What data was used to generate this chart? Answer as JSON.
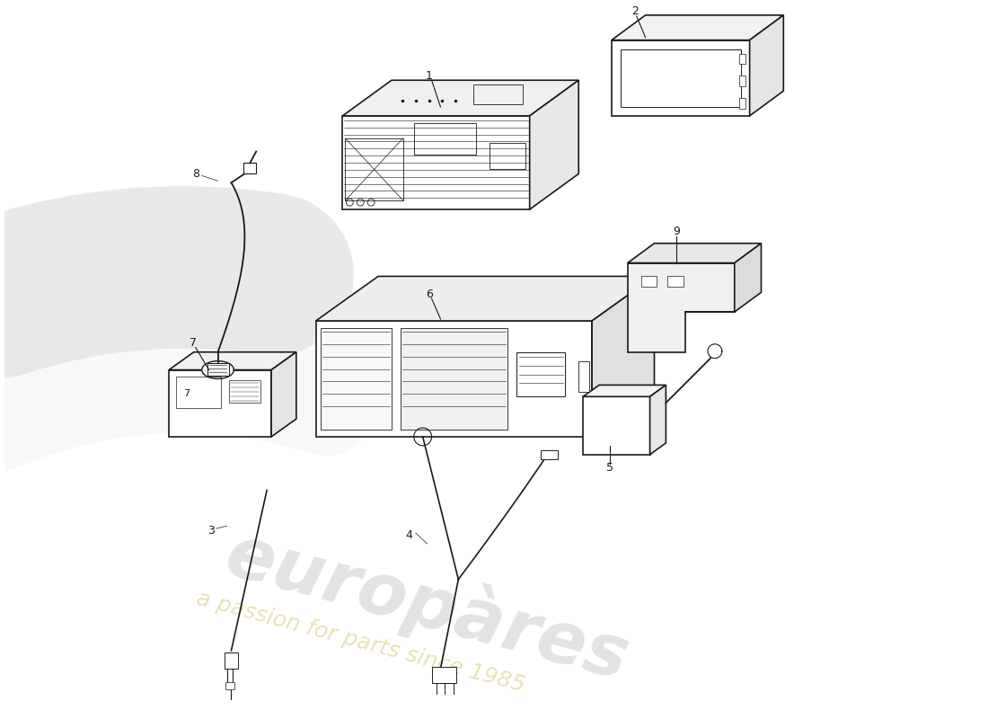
{
  "background_color": "#ffffff",
  "line_color": "#1a1a1a",
  "watermark_color1": "#c8c8c8",
  "watermark_color2": "#d4c870",
  "watermark_text2": "a passion for parts since 1985",
  "fig_w": 11.0,
  "fig_h": 8.0,
  "dpi": 100
}
